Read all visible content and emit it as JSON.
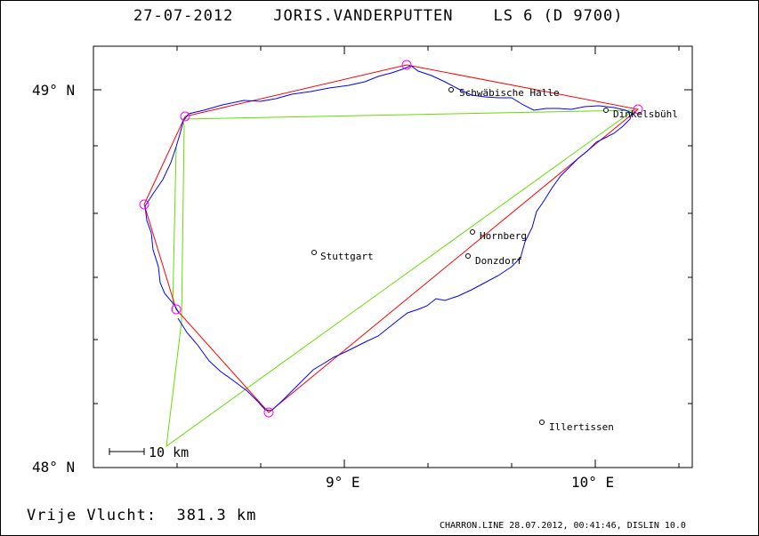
{
  "header": {
    "title": "27-07-2012    JORIS.VANDERPUTTEN    LS 6 (D 9700)"
  },
  "footer": {
    "flight_distance": "Vrije Vlucht:  381.3 km",
    "credits": "CHARRON.LINE 28.07.2012, 00:41:46, DISLIN 10.0"
  },
  "map": {
    "lat_labels": [
      {
        "lat": 49.0,
        "label": "49° N"
      },
      {
        "lat": 48.0,
        "label": "48° N"
      }
    ],
    "lon_labels": [
      {
        "lon": 9.0,
        "label": "9° E"
      },
      {
        "lon": 10.0,
        "label": "10° E"
      }
    ],
    "scale_bar_label": "10 km",
    "cities": [
      {
        "name": "Schwäbische Halle",
        "lon": 9.44,
        "lat": 49.0
      },
      {
        "name": "Dinkelsbühl",
        "lon": 10.04,
        "lat": 48.94
      },
      {
        "name": "Stuttgart",
        "lon": 8.87,
        "lat": 48.57
      },
      {
        "name": "Hornberg",
        "lon": 9.52,
        "lat": 48.62
      },
      {
        "name": "Donzdorf",
        "lon": 9.5,
        "lat": 48.56
      },
      {
        "name": "Illertissen",
        "lon": 9.81,
        "lat": 48.12
      }
    ],
    "turnpoints": [
      {
        "lon": 8.21,
        "lat": 48.69
      },
      {
        "lon": 8.36,
        "lat": 48.93
      },
      {
        "lon": 9.25,
        "lat": 49.07
      },
      {
        "lon": 10.18,
        "lat": 48.95
      },
      {
        "lon": 8.7,
        "lat": 48.15
      },
      {
        "lon": 8.35,
        "lat": 48.41
      }
    ],
    "colors": {
      "frame": "#000000",
      "track": "#0000ff",
      "task_line": "#ff0000",
      "other_line": "#66dd00",
      "turnpoint": "#ff00ff"
    }
  }
}
